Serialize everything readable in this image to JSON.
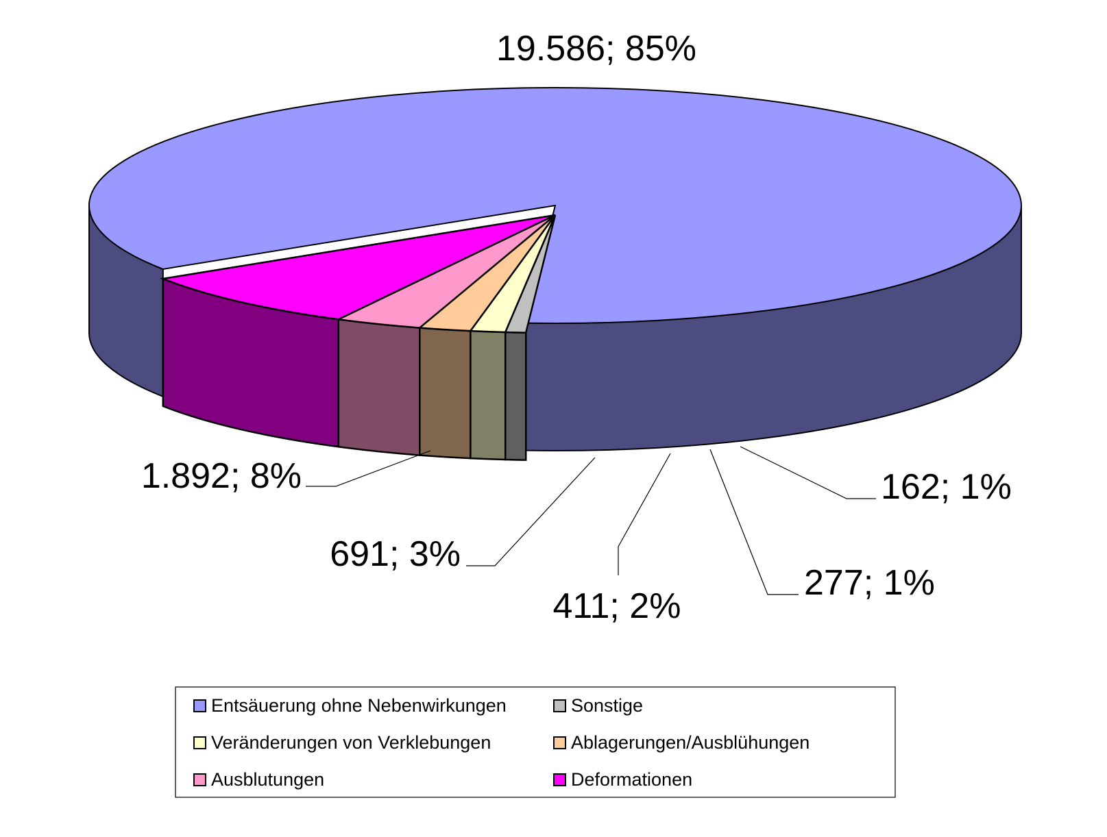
{
  "chart_data": {
    "type": "pie",
    "style": "3d-exploded-sector",
    "slices": [
      {
        "name": "Entsäuerung ohne Nebenwirkungen",
        "value": 19586,
        "percent": 85,
        "label": "19.586; 85%",
        "color": "#9999FF",
        "side_color": "#4C4C80"
      },
      {
        "name": "Deformationen",
        "value": 1892,
        "percent": 8,
        "label": "1.892; 8%",
        "color": "#FF00FF",
        "side_color": "#800080"
      },
      {
        "name": "Ausblutungen",
        "value": 691,
        "percent": 3,
        "label": "691; 3%",
        "color": "#FF99CC",
        "side_color": "#804C66"
      },
      {
        "name": "Ablagerungen/Ausblühungen",
        "value": 411,
        "percent": 2,
        "label": "411; 2%",
        "color": "#FFCC99",
        "side_color": "#80664C"
      },
      {
        "name": "Veränderungen von Verklebungen",
        "value": 277,
        "percent": 1,
        "label": "277; 1%",
        "color": "#FFFFCC",
        "side_color": "#808066"
      },
      {
        "name": "Sonstige",
        "value": 162,
        "percent": 1,
        "label": "162; 1%",
        "color": "#C0C0C0",
        "side_color": "#606060"
      }
    ],
    "legend": {
      "position": "bottom",
      "columns": [
        [
          "Entsäuerung ohne Nebenwirkungen",
          "Veränderungen von Verklebungen",
          "Ausblutungen"
        ],
        [
          "Sonstige",
          "Ablagerungen/Ausblühungen",
          "Deformationen"
        ]
      ]
    }
  }
}
